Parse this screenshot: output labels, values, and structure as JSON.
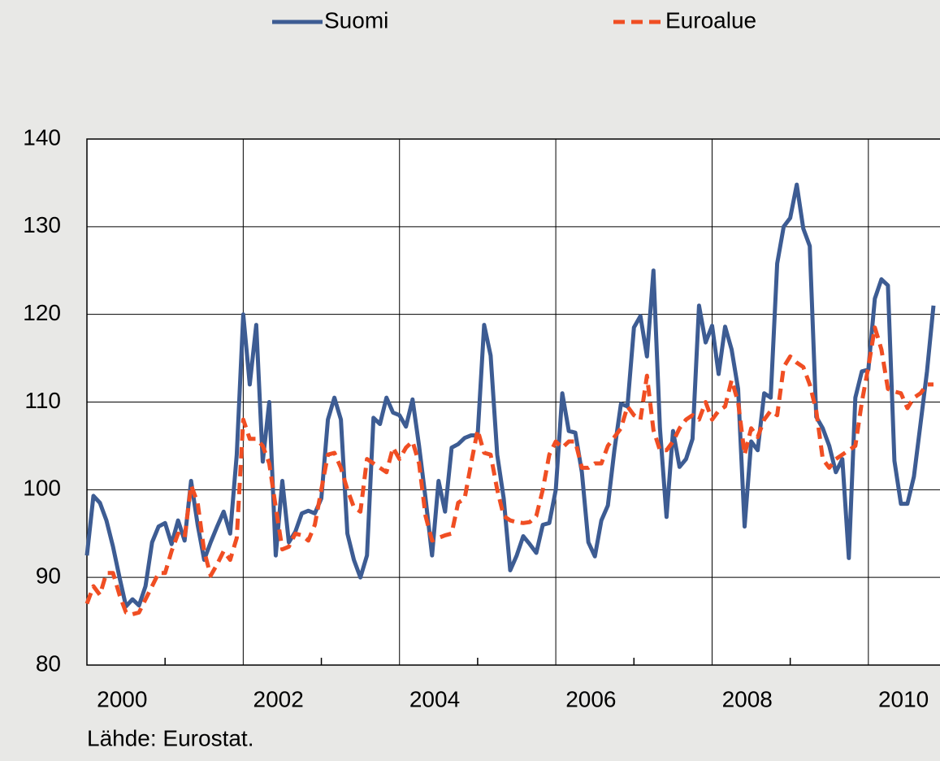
{
  "chart_data": {
    "type": "line",
    "source": "Lähde: Eurostat.",
    "x": [
      0,
      1,
      2,
      3,
      4,
      5,
      6,
      7,
      8,
      9,
      10,
      11,
      12,
      13,
      14,
      15,
      16,
      17,
      18,
      19,
      20,
      21,
      22,
      23,
      24,
      25,
      26,
      27,
      28,
      29,
      30,
      31,
      32,
      33,
      34,
      35,
      36,
      37,
      38,
      39,
      40,
      41,
      42,
      43,
      44,
      45,
      46,
      47,
      48,
      49,
      50,
      51,
      52,
      53,
      54,
      55,
      56,
      57,
      58,
      59,
      60,
      61,
      62,
      63,
      64,
      65,
      66,
      67,
      68,
      69,
      70,
      71,
      72,
      73,
      74,
      75,
      76,
      77,
      78,
      79,
      80,
      81,
      82,
      83,
      84,
      85,
      86,
      87,
      88,
      89,
      90,
      91,
      92,
      93,
      94,
      95,
      96,
      97,
      98,
      99,
      100,
      101,
      102,
      103,
      104,
      105,
      106,
      107,
      108,
      109,
      110,
      111,
      112,
      113,
      114,
      115,
      116,
      117,
      118,
      119,
      120,
      121,
      122,
      123,
      124,
      125,
      126,
      127,
      128,
      129,
      130
    ],
    "series": [
      {
        "name": "Suomi",
        "color": "#3d5c93",
        "dash": false,
        "values": [
          92.5,
          99.3,
          98.5,
          96.5,
          93.5,
          90,
          86.7,
          87.5,
          86.8,
          89,
          94,
          95.8,
          96.2,
          93.8,
          96.5,
          94.2,
          101,
          96,
          92,
          94,
          95.8,
          97.5,
          95,
          104,
          120,
          112,
          118.8,
          103.2,
          110,
          92.5,
          101,
          94,
          95.2,
          97.3,
          97.6,
          97.3,
          99,
          108,
          110.5,
          108,
          95,
          92,
          90,
          92.5,
          108.2,
          107.5,
          110.5,
          108.8,
          108.5,
          107.2,
          110.3,
          105,
          99,
          92.5,
          101,
          97.5,
          104.8,
          105.2,
          105.9,
          106.2,
          106.2,
          118.8,
          115.3,
          104,
          99,
          90.8,
          92.5,
          94.7,
          93.8,
          92.8,
          96,
          96.2,
          100,
          111,
          106.7,
          106.5,
          102,
          94,
          92.4,
          96.5,
          98.2,
          104.5,
          109.8,
          109.5,
          118.5,
          119.8,
          115.2,
          125,
          107,
          96.9,
          106.7,
          102.6,
          103.5,
          105.8,
          121,
          116.8,
          118.7,
          113.2,
          118.6,
          116,
          111.5,
          95.8,
          105.5,
          104.5,
          111,
          110.5,
          125.8,
          130,
          131,
          134.8,
          129.8,
          127.8,
          108.3,
          107,
          105,
          102,
          103.5,
          92.2,
          110.5,
          113.5,
          113.7,
          121.8,
          124,
          123.3,
          103.3,
          98.4,
          98.4,
          101.5,
          107.5,
          113.5,
          121
        ]
      },
      {
        "name": "Euroalue",
        "color": "#f04e23",
        "dash": true,
        "values": [
          87,
          89,
          88,
          90.5,
          90.5,
          88,
          86,
          85.8,
          86,
          87.5,
          89,
          90.5,
          90.5,
          93,
          95,
          94.5,
          100.5,
          98.5,
          93,
          90.2,
          91.5,
          93,
          92,
          94.5,
          108,
          105.8,
          105.8,
          105,
          103,
          98,
          93.2,
          93.5,
          95,
          94.8,
          94.2,
          96,
          100,
          104,
          104.2,
          102.5,
          100,
          98,
          97.5,
          103.5,
          103,
          102.5,
          102,
          104.8,
          103.5,
          104.8,
          105.5,
          103,
          97,
          94.2,
          94.5,
          94.8,
          95,
          98.5,
          99,
          103,
          106.8,
          104.2,
          104,
          100,
          97,
          96.5,
          96.3,
          96.2,
          96.3,
          97,
          100,
          104,
          105.5,
          104.8,
          105.5,
          105.5,
          102.5,
          102.5,
          103,
          103,
          105,
          106,
          107,
          109.5,
          108.5,
          108,
          113,
          106.8,
          104.5,
          104.5,
          105.5,
          107,
          108,
          108.5,
          108,
          110,
          108,
          109,
          109.5,
          112.5,
          110,
          104,
          107,
          106,
          108,
          109,
          108.5,
          114,
          115.2,
          114.5,
          114,
          112,
          109,
          103.5,
          102.5,
          103.5,
          104,
          104.5,
          105,
          110,
          114,
          118.5,
          116,
          111.5,
          111.2,
          111,
          109.3,
          110.5,
          111,
          112,
          112
        ]
      }
    ],
    "xlim": [
      0,
      131
    ],
    "xticks": [
      {
        "value": 0,
        "label": "2000"
      },
      {
        "value": 24,
        "label": "2002"
      },
      {
        "value": 48,
        "label": "2004"
      },
      {
        "value": 72,
        "label": "2006"
      },
      {
        "value": 96,
        "label": "2008"
      },
      {
        "value": 120,
        "label": "2010"
      }
    ],
    "xminorticks": [
      12,
      36,
      60,
      84,
      108
    ],
    "ylim": [
      80,
      140
    ],
    "yticks": [
      80,
      90,
      100,
      110,
      120,
      130,
      140
    ],
    "grid": true,
    "legend": "top"
  }
}
